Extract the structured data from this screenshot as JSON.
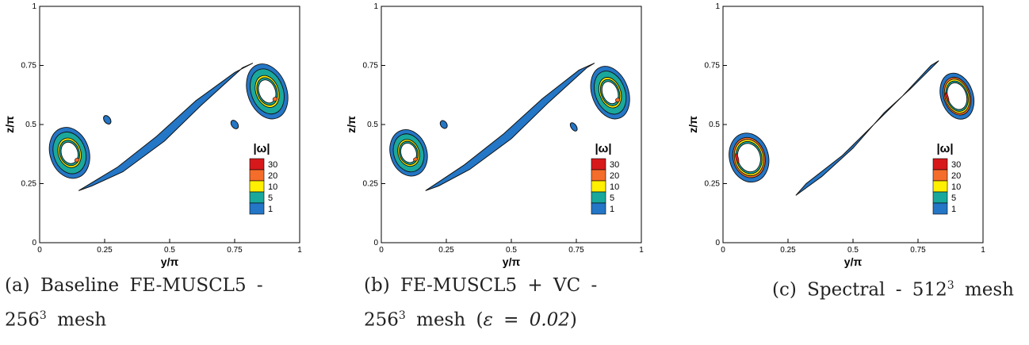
{
  "chart_data": [
    {
      "type": "contour",
      "xlabel": "y/π",
      "ylabel": "z/π",
      "xlim": [
        0,
        1
      ],
      "ylim": [
        0,
        1
      ],
      "x_ticks": [
        "0",
        "0.25",
        "0.5",
        "0.75",
        "1"
      ],
      "y_ticks": [
        "0",
        "0.25",
        "0.5",
        "0.75",
        "1"
      ],
      "legend_title": "|ω|",
      "levels": [
        "30",
        "20",
        "10",
        "5",
        "1"
      ],
      "level_colors": [
        "#d7191c",
        "#f46d2a",
        "#ffef00",
        "#1aa89c",
        "#2476c6"
      ],
      "caption_lines": [
        "(a) Baseline FE-MUSCL5 -",
        "256",
        "3",
        " mesh"
      ]
    },
    {
      "type": "contour",
      "xlabel": "y/π",
      "ylabel": "z/π",
      "xlim": [
        0,
        1
      ],
      "ylim": [
        0,
        1
      ],
      "x_ticks": [
        "0",
        "0.25",
        "0.5",
        "0.75",
        "1"
      ],
      "y_ticks": [
        "0",
        "0.25",
        "0.5",
        "0.75",
        "1"
      ],
      "legend_title": "|ω|",
      "levels": [
        "30",
        "20",
        "10",
        "5",
        "1"
      ],
      "level_colors": [
        "#d7191c",
        "#f46d2a",
        "#ffef00",
        "#1aa89c",
        "#2476c6"
      ],
      "caption_lines": [
        "(b) FE-MUSCL5 + VC -",
        "256",
        "3",
        " mesh (",
        "ε = 0.02",
        ")"
      ]
    },
    {
      "type": "contour",
      "xlabel": "y/π",
      "ylabel": "z/π",
      "xlim": [
        0,
        1
      ],
      "ylim": [
        0,
        1
      ],
      "x_ticks": [
        "0",
        "0.25",
        "0.5",
        "0.75",
        "1"
      ],
      "y_ticks": [
        "0",
        "0.25",
        "0.5",
        "0.75",
        "1"
      ],
      "legend_title": "|ω|",
      "levels": [
        "30",
        "20",
        "10",
        "5",
        "1"
      ],
      "level_colors": [
        "#d7191c",
        "#f46d2a",
        "#ffef00",
        "#1aa89c",
        "#2476c6"
      ],
      "caption_lines": [
        "(c) Spectral - 512",
        "3",
        " mesh"
      ]
    }
  ]
}
